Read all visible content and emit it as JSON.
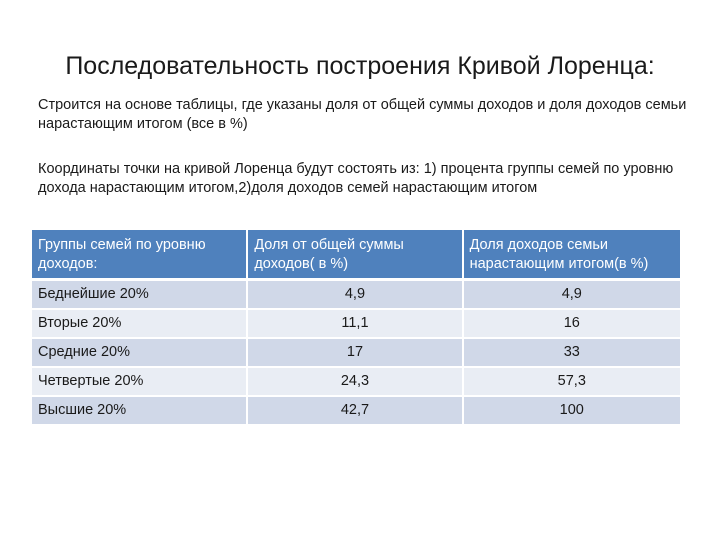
{
  "slide": {
    "title": "Последовательность построения Кривой Лоренца:",
    "paragraph1": "Строится на основе таблицы, где указаны доля от общей суммы доходов и доля доходов семьи нарастающим итогом (все в %)",
    "paragraph2": "Координаты точки на кривой Лоренца будут состоять из: 1) процента группы семей по уровню дохода нарастающим итогом,2)доля доходов семей нарастающим итогом"
  },
  "table": {
    "headers": [
      "Группы семей по уровню доходов:",
      "Доля от общей суммы доходов( в %)",
      "Доля доходов семьи нарастающим итогом(в %)"
    ],
    "rows": [
      [
        "Беднейшие 20%",
        "4,9",
        "4,9"
      ],
      [
        "Вторые 20%",
        "11,1",
        "16"
      ],
      [
        "Средние 20%",
        "17",
        "33"
      ],
      [
        "Четвертые 20%",
        "24,3",
        "57,3"
      ],
      [
        "Высшие 20%",
        "42,7",
        "100"
      ]
    ],
    "colors": {
      "header_bg": "#4f81bd",
      "row_odd_bg": "#d0d8e8",
      "row_even_bg": "#e9edf4"
    }
  }
}
